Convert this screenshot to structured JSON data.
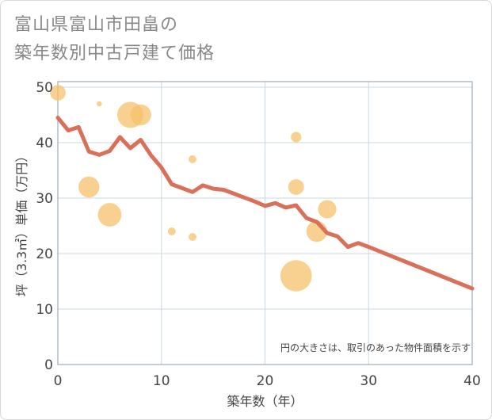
{
  "title": {
    "line1": "富山県富山市田畠の",
    "line2": "築年数別中古戸建て価格"
  },
  "chart_data": {
    "type": "scatter",
    "title": "富山県富山市田畠の築年数別中古戸建て価格",
    "xlabel": "築年数（年）",
    "ylabel": "坪（3.3㎡）単価（万円）",
    "xlim": [
      0,
      40
    ],
    "ylim": [
      0,
      51
    ],
    "xticks": [
      0,
      10,
      20,
      30,
      40
    ],
    "yticks": [
      0,
      10,
      20,
      30,
      40,
      50
    ],
    "grid": true,
    "note": "円の大きさは、取引のあった物件面積を示す",
    "colors": {
      "bubble": "#f5c26b",
      "line": "#d9705a",
      "grid": "#c9d7e3"
    },
    "bubbles": [
      {
        "x": 0,
        "y": 49,
        "size": 3
      },
      {
        "x": 4,
        "y": 47,
        "size": 1
      },
      {
        "x": 7,
        "y": 45,
        "size": 5
      },
      {
        "x": 8,
        "y": 45,
        "size": 4
      },
      {
        "x": 3,
        "y": 32,
        "size": 4
      },
      {
        "x": 5,
        "y": 27,
        "size": 4.5
      },
      {
        "x": 11,
        "y": 24,
        "size": 1.5
      },
      {
        "x": 13,
        "y": 37,
        "size": 1.5
      },
      {
        "x": 13,
        "y": 23,
        "size": 1.5
      },
      {
        "x": 23,
        "y": 41,
        "size": 2
      },
      {
        "x": 23,
        "y": 32,
        "size": 3
      },
      {
        "x": 23,
        "y": 16,
        "size": 6
      },
      {
        "x": 25,
        "y": 24,
        "size": 4
      },
      {
        "x": 26,
        "y": 28,
        "size": 3.5
      }
    ],
    "series": [
      {
        "name": "trend",
        "x": [
          0,
          1,
          2,
          3,
          4,
          5,
          6,
          7,
          8,
          9,
          10,
          11,
          12,
          13,
          14,
          15,
          16,
          17,
          18,
          19,
          20,
          21,
          22,
          23,
          24,
          25,
          26,
          27,
          28,
          29,
          30,
          40
        ],
        "y": [
          44.5,
          42.2,
          42.8,
          38.4,
          37.8,
          38.5,
          41.0,
          39.0,
          40.5,
          37.7,
          35.5,
          32.5,
          31.8,
          31.1,
          32.3,
          31.7,
          31.5,
          30.8,
          30.1,
          29.4,
          28.6,
          29.1,
          28.3,
          28.7,
          26.4,
          25.7,
          23.7,
          23.1,
          21.2,
          21.9,
          21.2,
          13.7
        ]
      }
    ]
  }
}
